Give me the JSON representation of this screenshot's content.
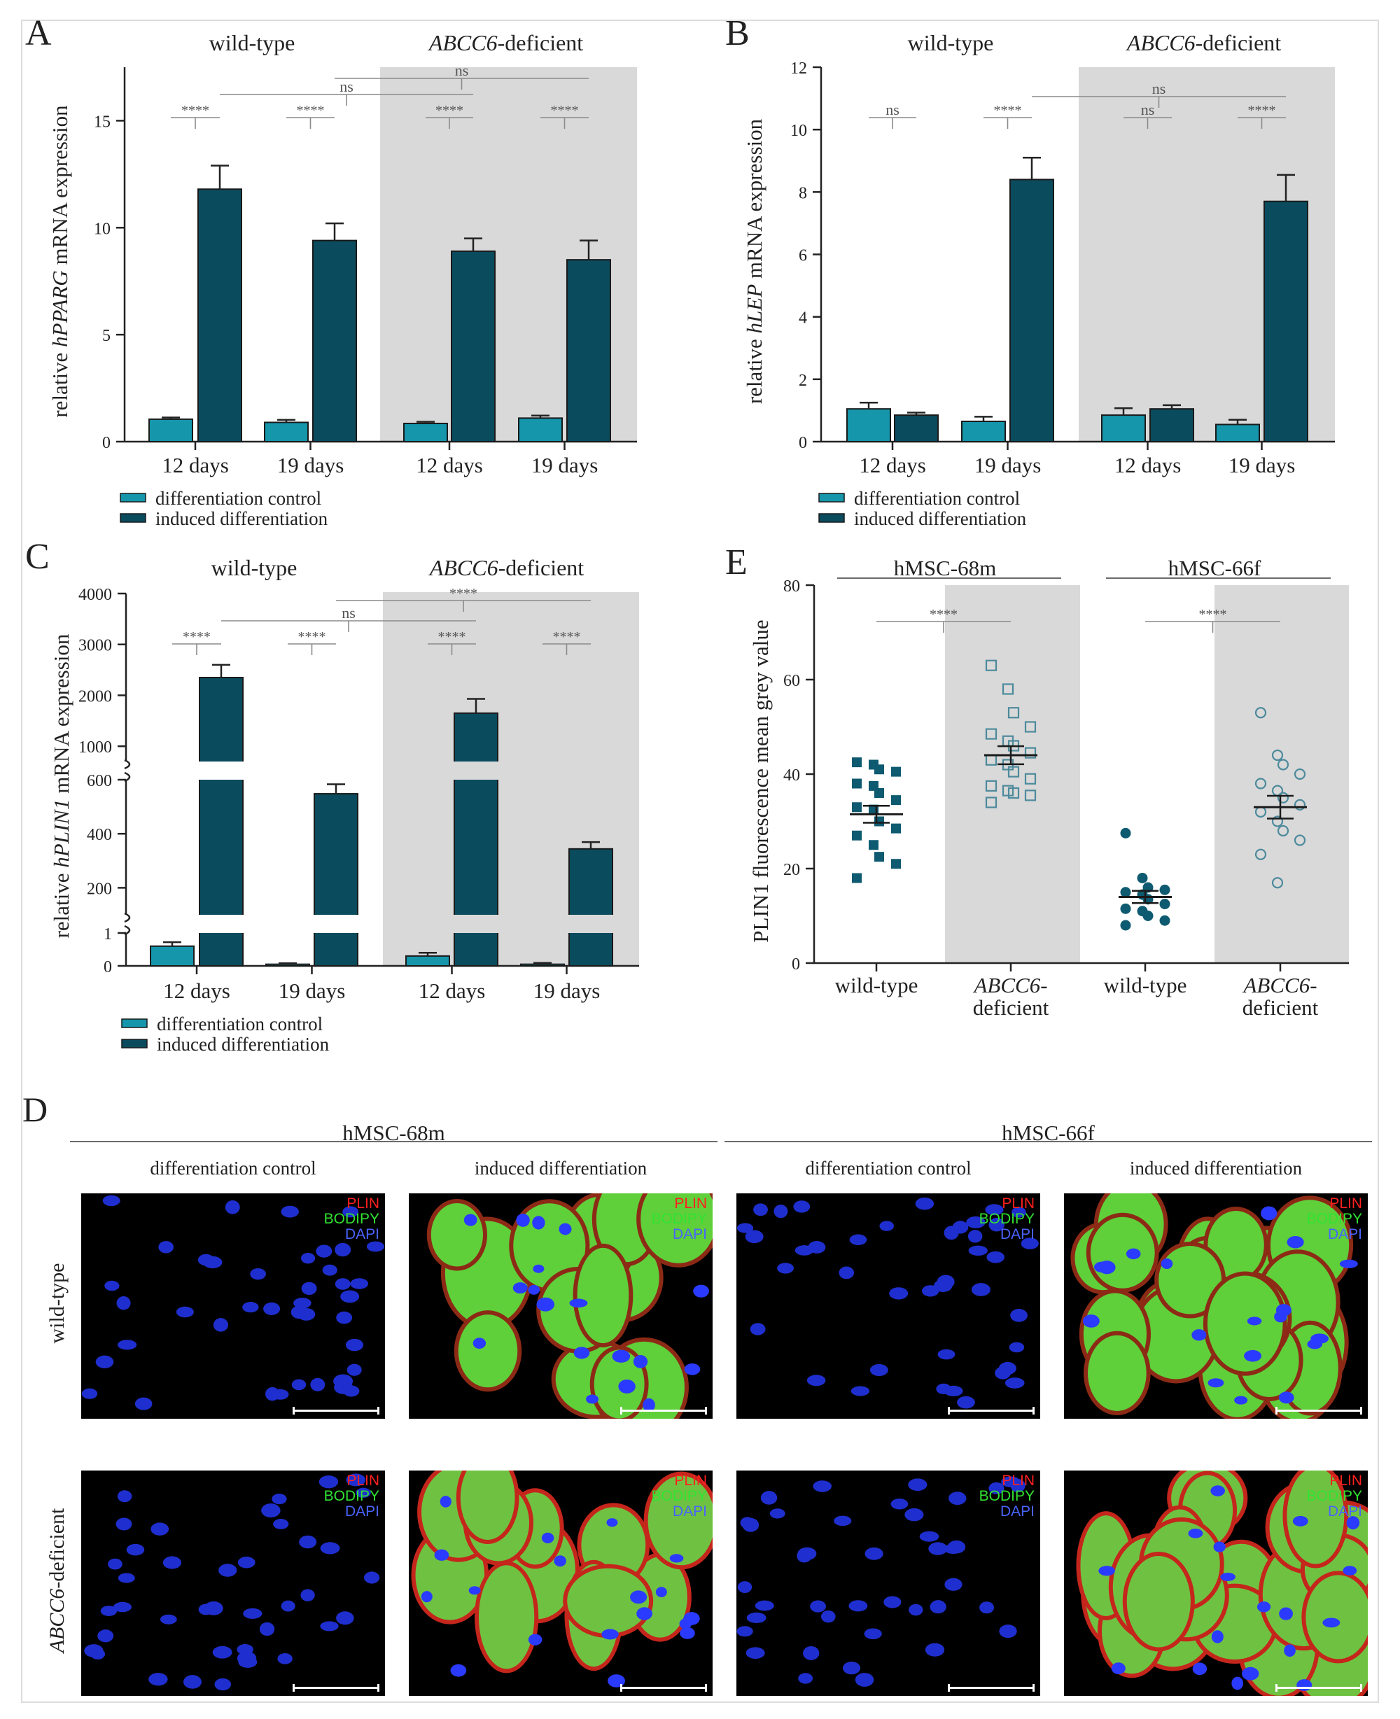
{
  "panels": {
    "A": "A",
    "B": "B",
    "C": "C",
    "D": "D",
    "E": "E"
  },
  "colors": {
    "control": "#1596ab",
    "induced": "#0b4b5e",
    "shade": "#d9d9d9",
    "wt_marker": "#0e5a70",
    "abcc6_marker": "#4d8a9c"
  },
  "chart_data": [
    {
      "id": "A",
      "type": "bar",
      "ylabel_pre": "relative ",
      "ylabel_gene": "hPPARG",
      "ylabel_post": " mRNA expression",
      "ylim": [
        0,
        17.5
      ],
      "yticks": [
        0,
        5,
        10,
        15
      ],
      "groups": [
        {
          "label": "wild-type",
          "shaded": false
        },
        {
          "label_gene": "ABCC6",
          "label_post": "-deficient",
          "shaded": true
        }
      ],
      "categories": [
        "12 days",
        "19 days",
        "12 days",
        "19 days"
      ],
      "series": [
        {
          "name": "differentiation control",
          "values": [
            1.05,
            0.9,
            0.85,
            1.1
          ],
          "errors": [
            0.08,
            0.12,
            0.08,
            0.12
          ]
        },
        {
          "name": "induced differentiation",
          "values": [
            11.8,
            9.4,
            8.9,
            8.5
          ],
          "errors": [
            1.1,
            0.8,
            0.6,
            0.9
          ]
        }
      ],
      "brackets": [
        {
          "a": 0,
          "b": 1,
          "label": "****",
          "level": 0
        },
        {
          "a": 2,
          "b": 3,
          "label": "****",
          "level": 0
        },
        {
          "a": 4,
          "b": 5,
          "label": "****",
          "level": 0
        },
        {
          "a": 6,
          "b": 7,
          "label": "****",
          "level": 0
        },
        {
          "a": 1,
          "b": 5,
          "label": "ns",
          "level": 1
        },
        {
          "a": 3,
          "b": 7,
          "label": "ns",
          "level": 2
        }
      ],
      "legend": [
        "differentiation control",
        "induced differentiation"
      ]
    },
    {
      "id": "B",
      "type": "bar",
      "ylabel_pre": "relative ",
      "ylabel_gene": "hLEP",
      "ylabel_post": " mRNA expression",
      "ylim": [
        0,
        12
      ],
      "yticks": [
        0,
        2,
        4,
        6,
        8,
        10,
        12
      ],
      "groups": [
        {
          "label": "wild-type",
          "shaded": false
        },
        {
          "label_gene": "ABCC6",
          "label_post": "-deficient",
          "shaded": true
        }
      ],
      "categories": [
        "12 days",
        "19 days",
        "12 days",
        "19 days"
      ],
      "series": [
        {
          "name": "differentiation control",
          "values": [
            1.05,
            0.65,
            0.85,
            0.55
          ],
          "errors": [
            0.2,
            0.15,
            0.22,
            0.15
          ]
        },
        {
          "name": "induced differentiation",
          "values": [
            0.85,
            8.4,
            1.05,
            7.7
          ],
          "errors": [
            0.08,
            0.7,
            0.12,
            0.85
          ]
        }
      ],
      "brackets": [
        {
          "a": 0,
          "b": 1,
          "label": "ns",
          "level": 0
        },
        {
          "a": 2,
          "b": 3,
          "label": "****",
          "level": 0
        },
        {
          "a": 4,
          "b": 5,
          "label": "ns",
          "level": 0
        },
        {
          "a": 6,
          "b": 7,
          "label": "****",
          "level": 0
        },
        {
          "a": 3,
          "b": 7,
          "label": "ns",
          "level": 1
        }
      ],
      "legend": [
        "differentiation control",
        "induced differentiation"
      ]
    },
    {
      "id": "C",
      "type": "bar",
      "ylabel_pre": "relative ",
      "ylabel_gene": "hPLIN1",
      "ylabel_post": " mRNA expression",
      "yticks_labels": [
        "0",
        "1",
        "200",
        "400",
        "600",
        "1000",
        "2000",
        "3000",
        "4000"
      ],
      "axis_segments": [
        [
          0,
          1
        ],
        [
          100,
          600
        ],
        [
          700,
          4000
        ]
      ],
      "groups": [
        {
          "label": "wild-type",
          "shaded": false
        },
        {
          "label_gene": "ABCC6",
          "label_post": "-deficient",
          "shaded": true
        }
      ],
      "categories": [
        "12 days",
        "19 days",
        "12 days",
        "19 days"
      ],
      "series": [
        {
          "name": "differentiation control",
          "values": [
            0.6,
            0.05,
            0.3,
            0.05
          ],
          "errors": [
            0.12,
            0.03,
            0.1,
            0.04
          ]
        },
        {
          "name": "induced differentiation",
          "values": [
            2350,
            548,
            1650,
            344
          ],
          "errors": [
            250,
            35,
            280,
            25
          ]
        }
      ],
      "brackets": [
        {
          "a": 0,
          "b": 1,
          "label": "****",
          "level": 0
        },
        {
          "a": 2,
          "b": 3,
          "label": "****",
          "level": 0
        },
        {
          "a": 4,
          "b": 5,
          "label": "****",
          "level": 0
        },
        {
          "a": 6,
          "b": 7,
          "label": "****",
          "level": 0
        },
        {
          "a": 1,
          "b": 5,
          "label": "ns",
          "level": 1
        },
        {
          "a": 3,
          "b": 7,
          "label": "****",
          "level": 2
        }
      ],
      "legend": [
        "differentiation control",
        "induced differentiation"
      ]
    },
    {
      "id": "E",
      "type": "scatter",
      "ylabel": "PLIN1 fluorescence mean grey value",
      "ylim": [
        0,
        80
      ],
      "yticks": [
        0,
        20,
        40,
        60,
        80
      ],
      "groups": [
        {
          "label": "hMSC-68m"
        },
        {
          "label": "hMSC-66f"
        }
      ],
      "categories": [
        {
          "label": "wild-type",
          "marker": "filled-square"
        },
        {
          "label_gene": "ABCC6",
          "label_post": "-",
          "label_line2": "deficient",
          "marker": "open-square"
        },
        {
          "label": "wild-type",
          "marker": "filled-circle"
        },
        {
          "label_gene": "ABCC6",
          "label_post": "-",
          "label_line2": "deficient",
          "marker": "open-circle"
        }
      ],
      "points": [
        [
          42.5,
          42,
          41,
          40.5,
          38,
          37.5,
          36,
          34.5,
          33,
          32.5,
          30,
          28.5,
          27,
          25,
          22.5,
          21,
          18
        ],
        [
          63,
          58,
          53,
          50,
          48.5,
          47,
          46,
          44.5,
          43,
          42,
          40.5,
          39,
          37.5,
          36.5,
          36,
          35.5,
          34
        ],
        [
          27.5,
          18,
          16,
          15.5,
          15,
          14.5,
          13.5,
          12.5,
          11.5,
          11,
          10,
          9,
          8
        ],
        [
          53,
          44,
          42,
          40,
          38,
          36.5,
          35,
          33.5,
          32,
          30,
          28,
          26,
          23,
          17
        ]
      ],
      "means": [
        31.5,
        44,
        14,
        33
      ],
      "sems": [
        1.8,
        1.9,
        1.3,
        2.4
      ],
      "brackets": [
        {
          "a": 0,
          "b": 1,
          "label": "****"
        },
        {
          "a": 2,
          "b": 3,
          "label": "****"
        }
      ]
    }
  ],
  "panel_D": {
    "lines": [
      "hMSC-68m",
      "hMSC-66f"
    ],
    "columns": [
      "differentiation control",
      "induced differentiation",
      "differentiation control",
      "induced differentiation"
    ],
    "row_wild": "wild-type",
    "row_abcc6_gene": "ABCC6",
    "row_abcc6_post": "-deficient",
    "stains": {
      "plin": "PLIN",
      "bodipy": "BODIPY",
      "dapi": "DAPI"
    }
  }
}
